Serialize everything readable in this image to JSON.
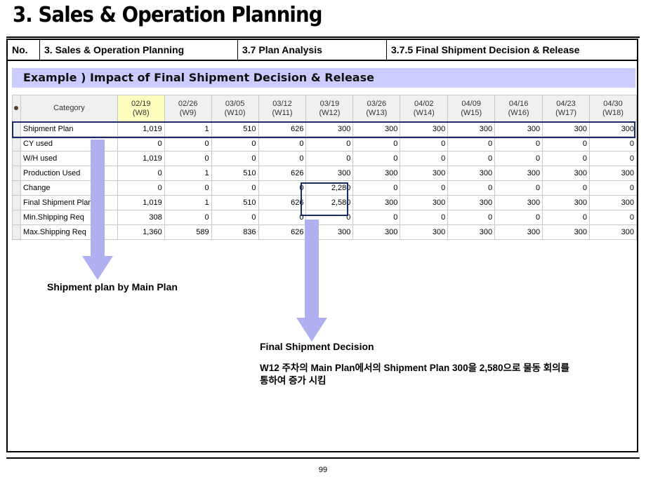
{
  "page_title": "3. Sales & Operation Planning",
  "header": {
    "no": "No.",
    "section": "3. Sales & Operation Planning",
    "subsection": "3.7 Plan Analysis",
    "topic": "3.7.5 Final Shipment Decision & Release"
  },
  "example_title": "Example ) Impact of Final Shipment Decision & Release",
  "table": {
    "category_header": "Category",
    "weeks": [
      {
        "date": "02/19",
        "week": "(W8)"
      },
      {
        "date": "02/26",
        "week": "(W9)"
      },
      {
        "date": "03/05",
        "week": "(W10)"
      },
      {
        "date": "03/12",
        "week": "(W11)"
      },
      {
        "date": "03/19",
        "week": "(W12)"
      },
      {
        "date": "03/26",
        "week": "(W13)"
      },
      {
        "date": "04/02",
        "week": "(W14)"
      },
      {
        "date": "04/09",
        "week": "(W15)"
      },
      {
        "date": "04/16",
        "week": "(W16)"
      },
      {
        "date": "04/23",
        "week": "(W17)"
      },
      {
        "date": "04/30",
        "week": "(W18)"
      }
    ],
    "rows": [
      {
        "label": "Shipment Plan",
        "values": [
          "1,019",
          "1",
          "510",
          "626",
          "300",
          "300",
          "300",
          "300",
          "300",
          "300",
          "300"
        ]
      },
      {
        "label": "CY used",
        "values": [
          "0",
          "0",
          "0",
          "0",
          "0",
          "0",
          "0",
          "0",
          "0",
          "0",
          "0"
        ]
      },
      {
        "label": "W/H used",
        "values": [
          "1,019",
          "0",
          "0",
          "0",
          "0",
          "0",
          "0",
          "0",
          "0",
          "0",
          "0"
        ]
      },
      {
        "label": "Production Used",
        "values": [
          "0",
          "1",
          "510",
          "626",
          "300",
          "300",
          "300",
          "300",
          "300",
          "300",
          "300"
        ]
      },
      {
        "label": "Change",
        "values": [
          "0",
          "0",
          "0",
          "0",
          "2,280",
          "0",
          "0",
          "0",
          "0",
          "0",
          "0"
        ]
      },
      {
        "label": "Final Shipment Plan",
        "values": [
          "1,019",
          "1",
          "510",
          "626",
          "2,580",
          "300",
          "300",
          "300",
          "300",
          "300",
          "300"
        ]
      },
      {
        "label": "Min.Shipping Req",
        "values": [
          "308",
          "0",
          "0",
          "0",
          "0",
          "0",
          "0",
          "0",
          "0",
          "0",
          "0"
        ]
      },
      {
        "label": "Max.Shipping Req",
        "values": [
          "1,360",
          "589",
          "836",
          "626",
          "300",
          "300",
          "300",
          "300",
          "300",
          "300",
          "300"
        ]
      }
    ]
  },
  "notes": {
    "main_plan": "Shipment plan by Main Plan",
    "final_title": "Final Shipment Decision",
    "final_line1": "W12 주차의 Main Plan에서의 Shipment Plan 300을 2,580으로 물동 회의를",
    "final_line2": "통하여 증가 시킴"
  },
  "page_number": "99",
  "colors": {
    "example_bar": "#ccccff",
    "arrow": "#b0b0f0",
    "highlight_border": "#1c2a6b",
    "first_week_header": "#ffffc0"
  }
}
